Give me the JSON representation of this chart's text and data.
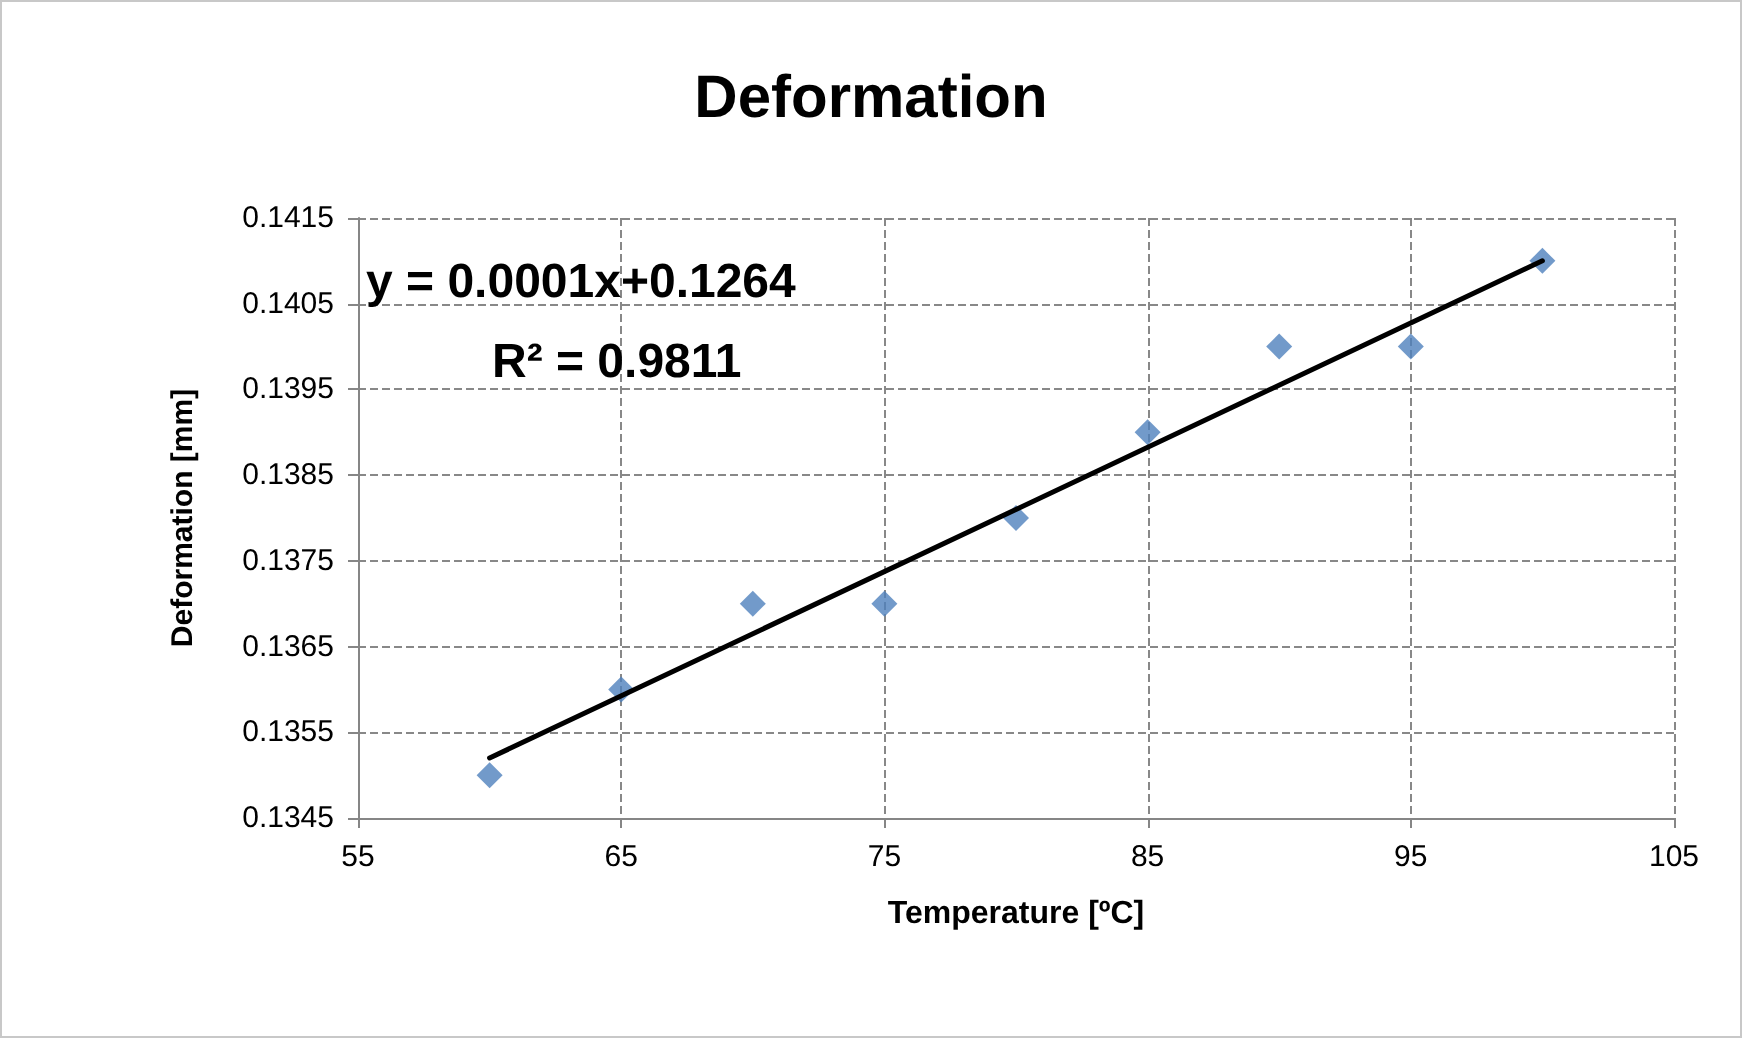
{
  "chart_data": {
    "type": "scatter",
    "title": "Deformation",
    "xlabel": "Temperature [ºC]",
    "ylabel": "Deformation [mm]",
    "series": [
      {
        "type": "scatter",
        "color": "#4f81bd",
        "marker": "diamond",
        "x": [
          60,
          65,
          70,
          75,
          80,
          85,
          90,
          95,
          100
        ],
        "values": [
          0.135,
          0.136,
          0.137,
          0.137,
          0.138,
          0.139,
          0.14,
          0.14,
          0.141
        ]
      },
      {
        "type": "line",
        "color": "#000000",
        "marker": "none",
        "line_style": "solid",
        "x": [
          60,
          100
        ],
        "values": [
          0.1352,
          0.141
        ]
      }
    ],
    "annotations": [
      "y = 0.0001x+0.1264",
      "R² = 0.9811"
    ],
    "xlim": [
      55,
      105
    ],
    "xticks": [
      55,
      65,
      75,
      85,
      95,
      105
    ],
    "ylim": [
      0.1345,
      0.1415
    ],
    "yticks": [
      0.1345,
      0.1355,
      0.1365,
      0.1375,
      0.1385,
      0.1395,
      0.1405,
      0.1415
    ],
    "grid": true
  }
}
